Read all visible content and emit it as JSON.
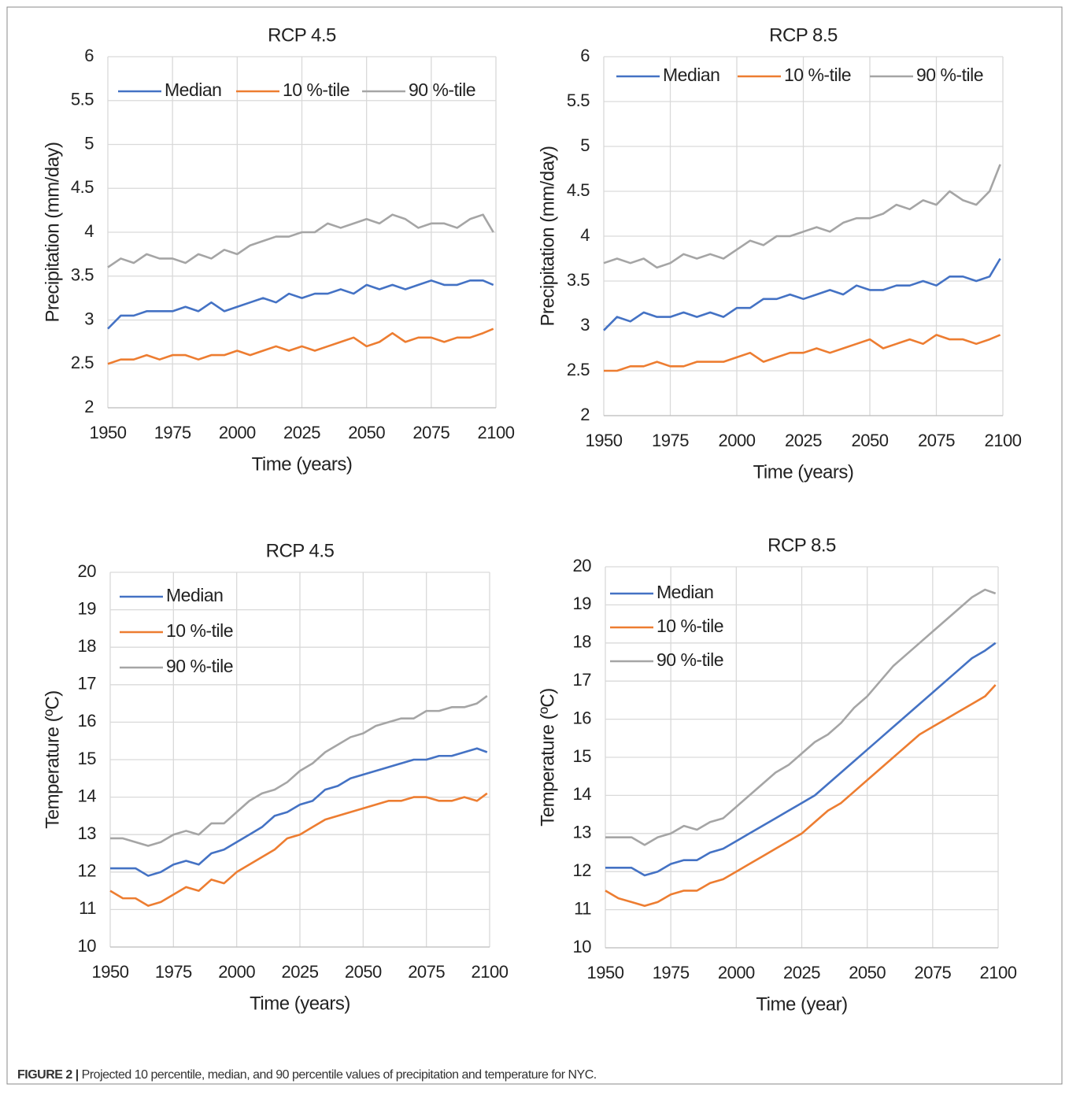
{
  "chart_data": [
    {
      "type": "line",
      "title": "RCP 4.5",
      "x_label": "Time (years)",
      "y_label": "Precipitation (mm/day)",
      "x": [
        1950,
        1955,
        1960,
        1965,
        1970,
        1975,
        1980,
        1985,
        1990,
        1995,
        2000,
        2005,
        2010,
        2015,
        2020,
        2025,
        2030,
        2035,
        2040,
        2045,
        2050,
        2055,
        2060,
        2065,
        2070,
        2075,
        2080,
        2085,
        2090,
        2095,
        2099
      ],
      "xlim": [
        1950,
        2100
      ],
      "xticks": [
        1950,
        1975,
        2000,
        2025,
        2050,
        2075,
        2100
      ],
      "ylim": [
        2,
        6
      ],
      "yticks": [
        2,
        2.5,
        3,
        3.5,
        4,
        4.5,
        5,
        5.5,
        6
      ],
      "grid": true,
      "legend": "top",
      "series": [
        {
          "name": "Median",
          "color": "#4472c4",
          "values": [
            2.9,
            3.05,
            3.05,
            3.1,
            3.1,
            3.1,
            3.15,
            3.1,
            3.2,
            3.1,
            3.15,
            3.2,
            3.25,
            3.2,
            3.3,
            3.25,
            3.3,
            3.3,
            3.35,
            3.3,
            3.4,
            3.35,
            3.4,
            3.35,
            3.4,
            3.45,
            3.4,
            3.4,
            3.45,
            3.45,
            3.4
          ]
        },
        {
          "name": "10 %-tile",
          "color": "#ed7d31",
          "values": [
            2.5,
            2.55,
            2.55,
            2.6,
            2.55,
            2.6,
            2.6,
            2.55,
            2.6,
            2.6,
            2.65,
            2.6,
            2.65,
            2.7,
            2.65,
            2.7,
            2.65,
            2.7,
            2.75,
            2.8,
            2.7,
            2.75,
            2.85,
            2.75,
            2.8,
            2.8,
            2.75,
            2.8,
            2.8,
            2.85,
            2.9
          ]
        },
        {
          "name": "90 %-tile",
          "color": "#a5a5a5",
          "values": [
            3.6,
            3.7,
            3.65,
            3.75,
            3.7,
            3.7,
            3.65,
            3.75,
            3.7,
            3.8,
            3.75,
            3.85,
            3.9,
            3.95,
            3.95,
            4.0,
            4.0,
            4.1,
            4.05,
            4.1,
            4.15,
            4.1,
            4.2,
            4.15,
            4.05,
            4.1,
            4.1,
            4.05,
            4.15,
            4.2,
            4.0
          ]
        }
      ]
    },
    {
      "type": "line",
      "title": "RCP 8.5",
      "x_label": "Time (years)",
      "y_label": "Precipitation (mm/day)",
      "x": [
        1950,
        1955,
        1960,
        1965,
        1970,
        1975,
        1980,
        1985,
        1990,
        1995,
        2000,
        2005,
        2010,
        2015,
        2020,
        2025,
        2030,
        2035,
        2040,
        2045,
        2050,
        2055,
        2060,
        2065,
        2070,
        2075,
        2080,
        2085,
        2090,
        2095,
        2099
      ],
      "xlim": [
        1950,
        2100
      ],
      "xticks": [
        1950,
        1975,
        2000,
        2025,
        2050,
        2075,
        2100
      ],
      "ylim": [
        2,
        6
      ],
      "yticks": [
        2,
        2.5,
        3,
        3.5,
        4,
        4.5,
        5,
        5.5,
        6
      ],
      "grid": true,
      "legend": "top",
      "series": [
        {
          "name": "Median",
          "color": "#4472c4",
          "values": [
            2.95,
            3.1,
            3.05,
            3.15,
            3.1,
            3.1,
            3.15,
            3.1,
            3.15,
            3.1,
            3.2,
            3.2,
            3.3,
            3.3,
            3.35,
            3.3,
            3.35,
            3.4,
            3.35,
            3.45,
            3.4,
            3.4,
            3.45,
            3.45,
            3.5,
            3.45,
            3.55,
            3.55,
            3.5,
            3.55,
            3.75
          ]
        },
        {
          "name": "10 %-tile",
          "color": "#ed7d31",
          "values": [
            2.5,
            2.5,
            2.55,
            2.55,
            2.6,
            2.55,
            2.55,
            2.6,
            2.6,
            2.6,
            2.65,
            2.7,
            2.6,
            2.65,
            2.7,
            2.7,
            2.75,
            2.7,
            2.75,
            2.8,
            2.85,
            2.75,
            2.8,
            2.85,
            2.8,
            2.9,
            2.85,
            2.85,
            2.8,
            2.85,
            2.9
          ]
        },
        {
          "name": "90 %-tile",
          "color": "#a5a5a5",
          "values": [
            3.7,
            3.75,
            3.7,
            3.75,
            3.65,
            3.7,
            3.8,
            3.75,
            3.8,
            3.75,
            3.85,
            3.95,
            3.9,
            4.0,
            4.0,
            4.05,
            4.1,
            4.05,
            4.15,
            4.2,
            4.2,
            4.25,
            4.35,
            4.3,
            4.4,
            4.35,
            4.5,
            4.4,
            4.35,
            4.5,
            4.8
          ]
        }
      ]
    },
    {
      "type": "line",
      "title": "RCP 4.5",
      "x_label": "Time (years)",
      "y_label": "Temperature (ºC)",
      "x": [
        1950,
        1955,
        1960,
        1965,
        1970,
        1975,
        1980,
        1985,
        1990,
        1995,
        2000,
        2005,
        2010,
        2015,
        2020,
        2025,
        2030,
        2035,
        2040,
        2045,
        2050,
        2055,
        2060,
        2065,
        2070,
        2075,
        2080,
        2085,
        2090,
        2095,
        2099
      ],
      "xlim": [
        1950,
        2100
      ],
      "xticks": [
        1950,
        1975,
        2000,
        2025,
        2050,
        2075,
        2100
      ],
      "ylim": [
        10,
        20
      ],
      "yticks": [
        10,
        11,
        12,
        13,
        14,
        15,
        16,
        17,
        18,
        19,
        20
      ],
      "grid": true,
      "legend": "upper left",
      "series": [
        {
          "name": "Median",
          "color": "#4472c4",
          "values": [
            12.1,
            12.1,
            12.1,
            11.9,
            12.0,
            12.2,
            12.3,
            12.2,
            12.5,
            12.6,
            12.8,
            13.0,
            13.2,
            13.5,
            13.6,
            13.8,
            13.9,
            14.2,
            14.3,
            14.5,
            14.6,
            14.7,
            14.8,
            14.9,
            15.0,
            15.0,
            15.1,
            15.1,
            15.2,
            15.3,
            15.2
          ]
        },
        {
          "name": "10 %-tile",
          "color": "#ed7d31",
          "values": [
            11.5,
            11.3,
            11.3,
            11.1,
            11.2,
            11.4,
            11.6,
            11.5,
            11.8,
            11.7,
            12.0,
            12.2,
            12.4,
            12.6,
            12.9,
            13.0,
            13.2,
            13.4,
            13.5,
            13.6,
            13.7,
            13.8,
            13.9,
            13.9,
            14.0,
            14.0,
            13.9,
            13.9,
            14.0,
            13.9,
            14.1
          ]
        },
        {
          "name": "90 %-tile",
          "color": "#a5a5a5",
          "values": [
            12.9,
            12.9,
            12.8,
            12.7,
            12.8,
            13.0,
            13.1,
            13.0,
            13.3,
            13.3,
            13.6,
            13.9,
            14.1,
            14.2,
            14.4,
            14.7,
            14.9,
            15.2,
            15.4,
            15.6,
            15.7,
            15.9,
            16.0,
            16.1,
            16.1,
            16.3,
            16.3,
            16.4,
            16.4,
            16.5,
            16.7
          ]
        }
      ]
    },
    {
      "type": "line",
      "title": "RCP 8.5",
      "x_label": "Time (year)",
      "y_label": "Temperature (ºC)",
      "x": [
        1950,
        1955,
        1960,
        1965,
        1970,
        1975,
        1980,
        1985,
        1990,
        1995,
        2000,
        2005,
        2010,
        2015,
        2020,
        2025,
        2030,
        2035,
        2040,
        2045,
        2050,
        2055,
        2060,
        2065,
        2070,
        2075,
        2080,
        2085,
        2090,
        2095,
        2099
      ],
      "xlim": [
        1950,
        2100
      ],
      "xticks": [
        1950,
        1975,
        2000,
        2025,
        2050,
        2075,
        2100
      ],
      "ylim": [
        10,
        20
      ],
      "yticks": [
        10,
        11,
        12,
        13,
        14,
        15,
        16,
        17,
        18,
        19,
        20
      ],
      "grid": true,
      "legend": "upper left",
      "series": [
        {
          "name": "Median",
          "color": "#4472c4",
          "values": [
            12.1,
            12.1,
            12.1,
            11.9,
            12.0,
            12.2,
            12.3,
            12.3,
            12.5,
            12.6,
            12.8,
            13.0,
            13.2,
            13.4,
            13.6,
            13.8,
            14.0,
            14.3,
            14.6,
            14.9,
            15.2,
            15.5,
            15.8,
            16.1,
            16.4,
            16.7,
            17.0,
            17.3,
            17.6,
            17.8,
            18.0
          ]
        },
        {
          "name": "10 %-tile",
          "color": "#ed7d31",
          "values": [
            11.5,
            11.3,
            11.2,
            11.1,
            11.2,
            11.4,
            11.5,
            11.5,
            11.7,
            11.8,
            12.0,
            12.2,
            12.4,
            12.6,
            12.8,
            13.0,
            13.3,
            13.6,
            13.8,
            14.1,
            14.4,
            14.7,
            15.0,
            15.3,
            15.6,
            15.8,
            16.0,
            16.2,
            16.4,
            16.6,
            16.9
          ]
        },
        {
          "name": "90 %-tile",
          "color": "#a5a5a5",
          "values": [
            12.9,
            12.9,
            12.9,
            12.7,
            12.9,
            13.0,
            13.2,
            13.1,
            13.3,
            13.4,
            13.7,
            14.0,
            14.3,
            14.6,
            14.8,
            15.1,
            15.4,
            15.6,
            15.9,
            16.3,
            16.6,
            17.0,
            17.4,
            17.7,
            18.0,
            18.3,
            18.6,
            18.9,
            19.2,
            19.4,
            19.3
          ]
        }
      ]
    }
  ],
  "caption": {
    "label": "FIGURE 2 |",
    "text": "Projected 10 percentile, median, and 90 percentile values of precipitation and temperature for NYC."
  }
}
